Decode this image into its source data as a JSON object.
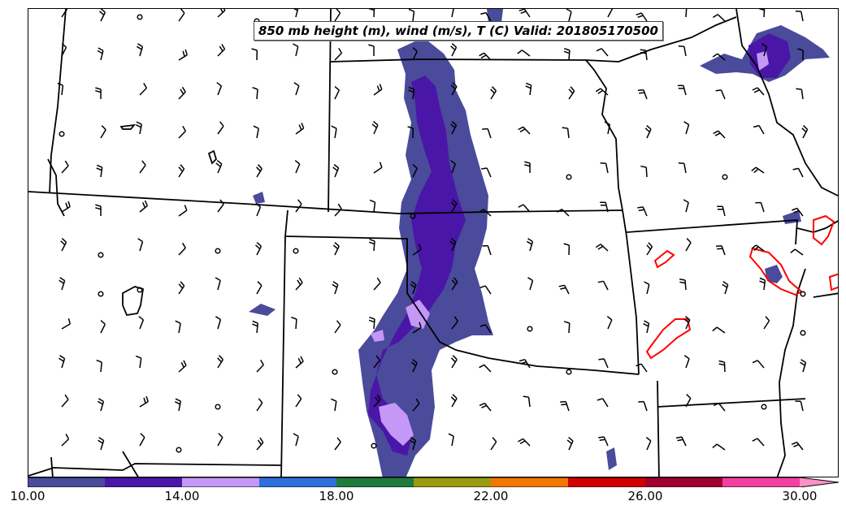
{
  "title": "850 mb height (m), wind (m/s), T (C) Valid: 201805170500",
  "colorbar": {
    "colors": [
      "#4a4b9a",
      "#4a16a8",
      "#c597f6",
      "#2f6fdc",
      "#1f7a3c",
      "#9a9a10",
      "#f07800",
      "#d00000",
      "#a00030",
      "#f040a0",
      "#ff90c8"
    ],
    "tick_labels": [
      "10.00",
      "14.00",
      "18.00",
      "22.00",
      "26.00",
      "30.00"
    ],
    "min": 10,
    "max": 30,
    "step": 2,
    "extend": "max"
  },
  "contour_color": "#ff0000",
  "boundary_color": "#000000"
}
